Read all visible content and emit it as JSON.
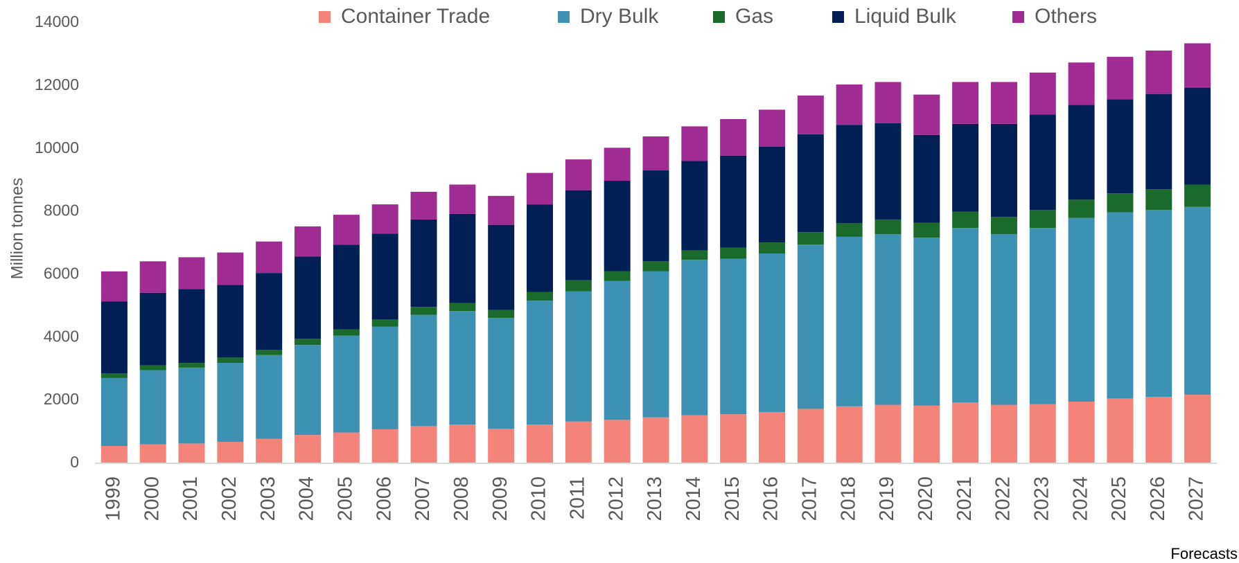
{
  "chart_data": {
    "type": "stacked_bar",
    "y_label": "Million tonnes",
    "annotation": "Forecasts",
    "categories": [
      "1999",
      "2000",
      "2001",
      "2002",
      "2003",
      "2004",
      "2005",
      "2006",
      "2007",
      "2008",
      "2009",
      "2010",
      "2011",
      "2012",
      "2013",
      "2014",
      "2015",
      "2016",
      "2017",
      "2018",
      "2019",
      "2020",
      "2021",
      "2022",
      "2023",
      "2024",
      "2025",
      "2026",
      "2027"
    ],
    "series": [
      {
        "name": "Container Trade",
        "color": "#f4837a",
        "values": [
          550,
          600,
          630,
          680,
          780,
          900,
          980,
          1080,
          1180,
          1230,
          1100,
          1230,
          1330,
          1380,
          1460,
          1530,
          1560,
          1630,
          1730,
          1810,
          1860,
          1830,
          1930,
          1860,
          1880,
          1960,
          2060,
          2110,
          2180
        ]
      },
      {
        "name": "Dry Bulk",
        "color": "#3d92b4",
        "values": [
          2160,
          2360,
          2410,
          2510,
          2660,
          2860,
          3080,
          3260,
          3540,
          3610,
          3520,
          3940,
          4140,
          4420,
          4640,
          4940,
          4940,
          5040,
          5220,
          5390,
          5420,
          5340,
          5550,
          5420,
          5600,
          5840,
          5920,
          5940,
          5970
        ]
      },
      {
        "name": "Gas",
        "color": "#1a6b2b",
        "values": [
          150,
          150,
          150,
          170,
          170,
          200,
          200,
          230,
          250,
          250,
          250,
          270,
          350,
          300,
          320,
          300,
          350,
          350,
          400,
          430,
          470,
          480,
          520,
          550,
          570,
          580,
          600,
          660,
          710
        ]
      },
      {
        "name": "Liquid Bulk",
        "color": "#001f55",
        "values": [
          2280,
          2310,
          2350,
          2310,
          2440,
          2610,
          2690,
          2730,
          2780,
          2840,
          2710,
          2790,
          2860,
          2880,
          2890,
          2840,
          2930,
          3040,
          3110,
          3130,
          3060,
          2790,
          2790,
          2960,
          3040,
          3010,
          2990,
          3030,
          3080
        ]
      },
      {
        "name": "Others",
        "color": "#a02b93",
        "values": [
          960,
          1000,
          1010,
          1030,
          1000,
          960,
          950,
          930,
          880,
          930,
          920,
          1000,
          980,
          1050,
          1080,
          1100,
          1160,
          1180,
          1230,
          1280,
          1310,
          1280,
          1330,
          1330,
          1330,
          1350,
          1350,
          1380,
          1410
        ]
      }
    ],
    "ylim": [
      0,
      14000
    ],
    "yticks": [
      0,
      2000,
      4000,
      6000,
      8000,
      10000,
      12000,
      14000
    ],
    "legend": "top"
  }
}
